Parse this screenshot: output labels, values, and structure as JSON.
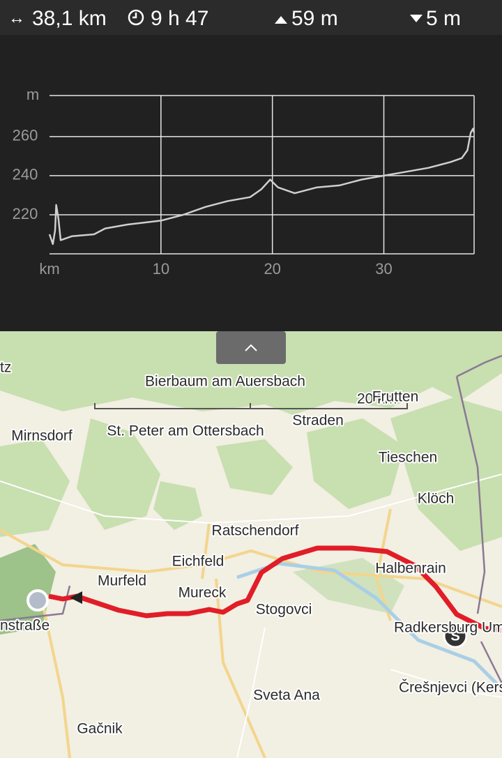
{
  "header": {
    "distance": "38,1 km",
    "duration": "9 h 47",
    "ascent": "59 m",
    "descent": "5 m"
  },
  "chart_data": {
    "type": "line",
    "x_label": "km",
    "y_label": "m",
    "x": [
      0,
      0.3,
      0.5,
      0.6,
      0.8,
      1.0,
      2,
      4,
      5,
      7,
      10,
      12,
      14,
      16,
      18,
      19,
      19.8,
      20.5,
      22,
      24,
      26,
      28,
      30,
      32,
      34,
      36,
      37,
      37.5,
      37.8,
      38,
      38.1
    ],
    "values": [
      210,
      205,
      212,
      225,
      218,
      207,
      209,
      210,
      213,
      215,
      217,
      220,
      224,
      227,
      229,
      233,
      238,
      234,
      231,
      234,
      235,
      238,
      240,
      242,
      244,
      247,
      249,
      253,
      262,
      264,
      262
    ],
    "color": "#cfcfcf",
    "xlim": [
      0,
      38.1
    ],
    "ylim": [
      200,
      281
    ],
    "xticks": [
      10,
      20,
      30
    ],
    "yticks": [
      220,
      240,
      260
    ],
    "grid": true
  },
  "map": {
    "scale": "20 km",
    "labels": [
      "tz",
      "Bierbaum am Auersbach",
      "Frutten",
      "Mirnsdorf",
      "St. Peter am Ottersbach",
      "Straden",
      "Tieschen",
      "Klöch",
      "Ratschendorf",
      "Eichfeld",
      "Halbenrain",
      "Murfeld",
      "Mureck",
      "Stogovci",
      "Radkersburg Um",
      "nstraße",
      "Sveta Ana",
      "Črešnjevci (Kersch",
      "Gačnik"
    ]
  }
}
